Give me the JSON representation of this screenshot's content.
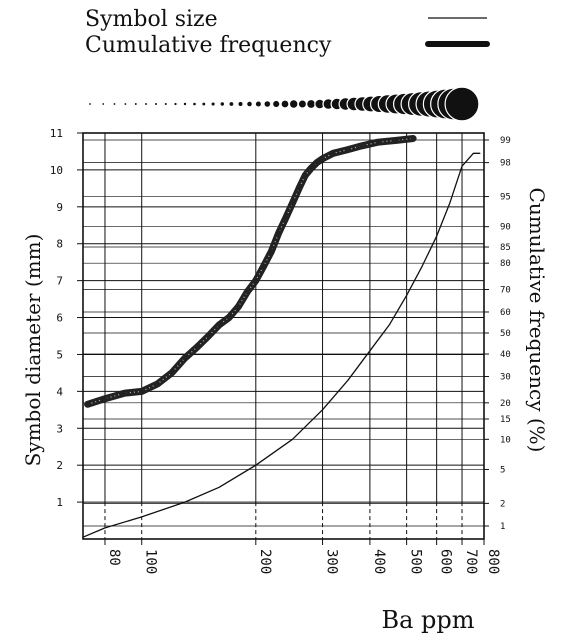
{
  "chart_data": {
    "type": "line",
    "legend": [
      {
        "label": "Symbol size",
        "style": "thin-line"
      },
      {
        "label": "Cumulative frequency",
        "style": "thick-line"
      }
    ],
    "xlabel": "Ba ppm",
    "ylabel_left": "Symbol diameter (mm)",
    "ylabel_right": "Cumulative frequency (%)",
    "x_scale": "log",
    "xlim": [
      70,
      800
    ],
    "x_ticks": [
      "80",
      "100",
      "200",
      "300",
      "400",
      "500",
      "600",
      "700",
      "800"
    ],
    "y_left_lim": [
      0,
      11
    ],
    "y_left_ticks": [
      "1",
      "2",
      "3",
      "4",
      "5",
      "6",
      "7",
      "8",
      "9",
      "10",
      "11"
    ],
    "y_right_ticks": [
      "1",
      "2",
      "5",
      "10",
      "15",
      "20",
      "30",
      "40",
      "50",
      "60",
      "70",
      "80",
      "85",
      "90",
      "95",
      "98",
      "99"
    ],
    "grid": true,
    "series": [
      {
        "name": "Symbol size",
        "axis": "left",
        "x": [
          70,
          80,
          100,
          130,
          160,
          200,
          250,
          300,
          350,
          400,
          450,
          500,
          550,
          600,
          650,
          700,
          750,
          780
        ],
        "y": [
          0.05,
          0.3,
          0.6,
          1.0,
          1.4,
          2.0,
          2.7,
          3.5,
          4.3,
          5.1,
          5.8,
          6.6,
          7.4,
          8.2,
          9.1,
          10.1,
          10.45,
          10.45
        ]
      },
      {
        "name": "Cumulative frequency",
        "axis": "left",
        "x": [
          72,
          80,
          90,
          100,
          110,
          120,
          130,
          140,
          150,
          160,
          170,
          180,
          190,
          200,
          210,
          220,
          230,
          240,
          250,
          260,
          270,
          280,
          290,
          300,
          320,
          350,
          380,
          420,
          470,
          520
        ],
        "y": [
          3.65,
          3.8,
          3.95,
          4.0,
          4.2,
          4.5,
          4.9,
          5.2,
          5.5,
          5.8,
          6.0,
          6.3,
          6.7,
          7.0,
          7.4,
          7.8,
          8.3,
          8.7,
          9.1,
          9.5,
          9.85,
          10.05,
          10.2,
          10.3,
          10.45,
          10.55,
          10.65,
          10.75,
          10.8,
          10.85
        ]
      }
    ]
  }
}
